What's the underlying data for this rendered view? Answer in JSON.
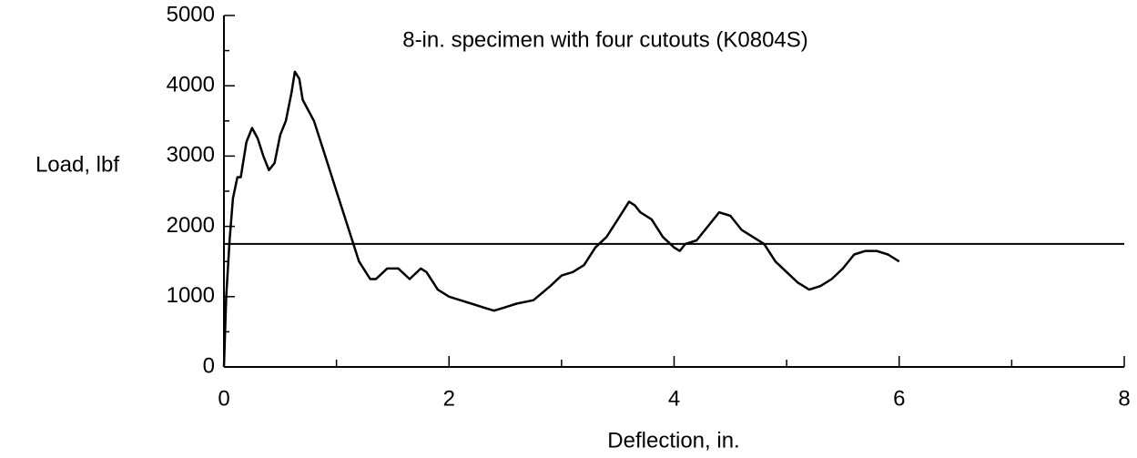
{
  "chart_data": {
    "type": "line",
    "title": "8-in. specimen with four cutouts (K0804S)",
    "xlabel": "Deflection, in.",
    "ylabel": "Load, lbf",
    "xlim": [
      0,
      8
    ],
    "ylim": [
      0,
      5000
    ],
    "xticks": [
      0,
      2,
      4,
      6,
      8
    ],
    "yticks": [
      0,
      1000,
      2000,
      3000,
      4000,
      5000
    ],
    "xminor_ticks": [
      1,
      3,
      5,
      7
    ],
    "yminor_ticks": [
      500,
      1500,
      2500,
      3500,
      4500
    ],
    "reference_line": 1750,
    "color": "#000000",
    "grid": false,
    "x": [
      0,
      0.02,
      0.05,
      0.08,
      0.12,
      0.15,
      0.2,
      0.25,
      0.3,
      0.35,
      0.4,
      0.45,
      0.5,
      0.55,
      0.6,
      0.63,
      0.67,
      0.7,
      0.8,
      0.9,
      1.0,
      1.1,
      1.2,
      1.3,
      1.35,
      1.45,
      1.55,
      1.65,
      1.75,
      1.8,
      1.9,
      2.0,
      2.1,
      2.2,
      2.3,
      2.4,
      2.5,
      2.6,
      2.75,
      2.9,
      3.0,
      3.1,
      3.2,
      3.3,
      3.4,
      3.5,
      3.6,
      3.65,
      3.7,
      3.8,
      3.9,
      4.0,
      4.05,
      4.1,
      4.2,
      4.3,
      4.4,
      4.5,
      4.6,
      4.7,
      4.8,
      4.9,
      5.0,
      5.1,
      5.2,
      5.3,
      5.4,
      5.5,
      5.6,
      5.7,
      5.8,
      5.9,
      6.0
    ],
    "values": [
      0,
      1000,
      1800,
      2400,
      2700,
      2700,
      3200,
      3400,
      3250,
      3000,
      2800,
      2900,
      3300,
      3500,
      3900,
      4200,
      4100,
      3800,
      3500,
      3000,
      2500,
      2000,
      1500,
      1250,
      1250,
      1400,
      1400,
      1250,
      1400,
      1350,
      1100,
      1000,
      950,
      900,
      850,
      800,
      850,
      900,
      950,
      1150,
      1300,
      1350,
      1450,
      1700,
      1850,
      2100,
      2350,
      2300,
      2200,
      2100,
      1850,
      1700,
      1650,
      1750,
      1800,
      2000,
      2200,
      2150,
      1950,
      1850,
      1750,
      1500,
      1350,
      1200,
      1100,
      1150,
      1250,
      1400,
      1600,
      1650,
      1650,
      1600,
      1500
    ]
  }
}
